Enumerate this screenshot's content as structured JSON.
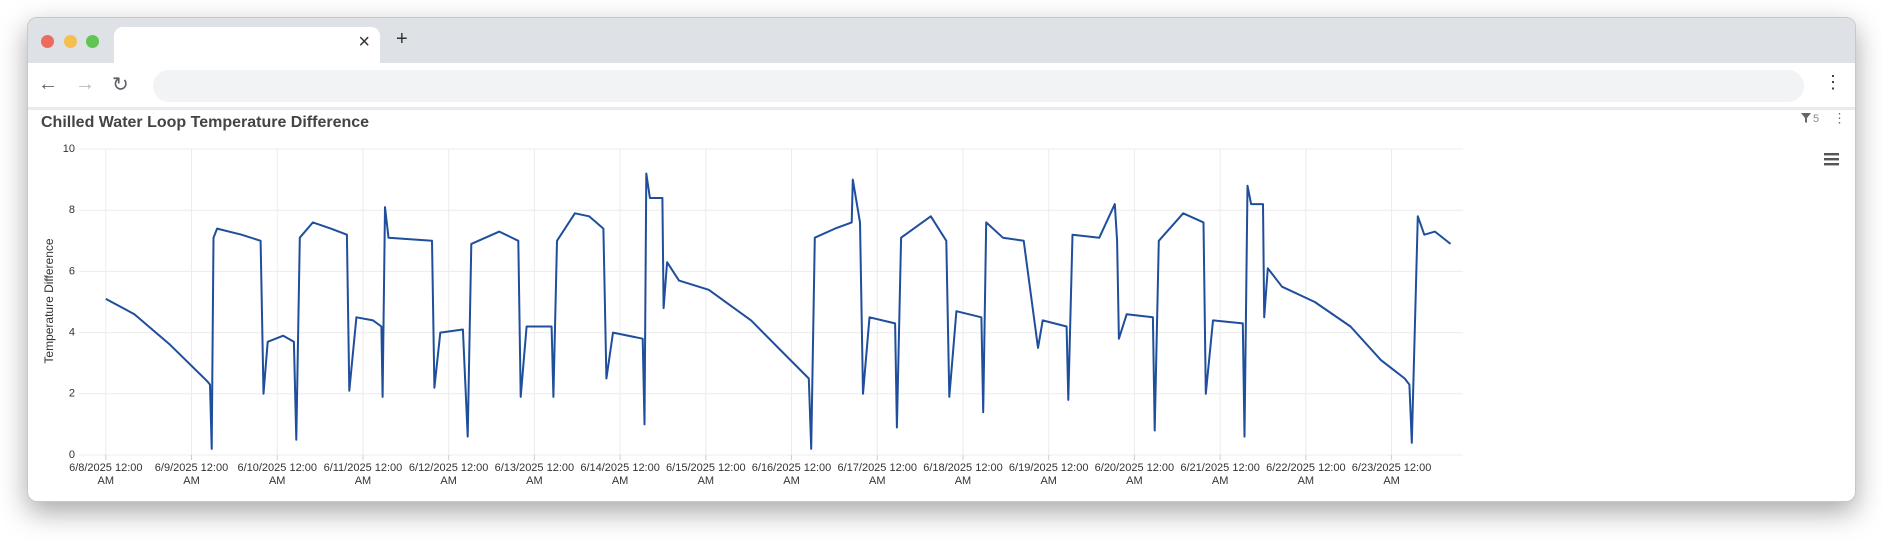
{
  "filter_count": 5,
  "chart_data": {
    "type": "line",
    "title": "Chilled Water Loop Temperature Difference",
    "y_label": "Temperature Difference",
    "x": [
      "2025-06-08T00:00",
      "2025-06-08T08:00",
      "2025-06-08T18:00",
      "2025-06-09T04:30",
      "2025-06-09T05:10",
      "2025-06-09T05:40",
      "2025-06-09T06:10",
      "2025-06-09T07:10",
      "2025-06-09T14:00",
      "2025-06-09T19:20",
      "2025-06-09T20:10",
      "2025-06-09T21:20",
      "2025-06-10T01:40",
      "2025-06-10T04:40",
      "2025-06-10T05:20",
      "2025-06-10T06:20",
      "2025-06-10T10:00",
      "2025-06-10T15:00",
      "2025-06-10T19:30",
      "2025-06-10T20:10",
      "2025-06-10T22:10",
      "2025-06-11T02:50",
      "2025-06-11T05:10",
      "2025-06-11T05:30",
      "2025-06-11T06:10",
      "2025-06-11T07:10",
      "2025-06-11T19:20",
      "2025-06-11T20:00",
      "2025-06-11T21:40",
      "2025-06-12T04:00",
      "2025-06-12T05:20",
      "2025-06-12T06:20",
      "2025-06-12T14:10",
      "2025-06-12T19:30",
      "2025-06-12T20:10",
      "2025-06-12T21:50",
      "2025-06-13T04:50",
      "2025-06-13T05:20",
      "2025-06-13T06:20",
      "2025-06-13T11:20",
      "2025-06-13T15:20",
      "2025-06-13T19:20",
      "2025-06-13T20:10",
      "2025-06-13T22:00",
      "2025-06-14T06:20",
      "2025-06-14T06:50",
      "2025-06-14T07:20",
      "2025-06-14T08:20",
      "2025-06-14T11:50",
      "2025-06-14T12:10",
      "2025-06-14T13:10",
      "2025-06-14T16:30",
      "2025-06-15T00:50",
      "2025-06-15T12:40",
      "2025-06-15T21:10",
      "2025-06-16T04:50",
      "2025-06-16T05:30",
      "2025-06-16T06:30",
      "2025-06-16T12:10",
      "2025-06-16T16:50",
      "2025-06-16T17:10",
      "2025-06-16T19:10",
      "2025-06-16T20:00",
      "2025-06-16T21:50",
      "2025-06-17T05:00",
      "2025-06-17T05:30",
      "2025-06-17T06:40",
      "2025-06-17T15:00",
      "2025-06-17T19:20",
      "2025-06-17T20:10",
      "2025-06-17T22:10",
      "2025-06-18T05:10",
      "2025-06-18T05:40",
      "2025-06-18T06:30",
      "2025-06-18T11:10",
      "2025-06-18T17:00",
      "2025-06-18T21:00",
      "2025-06-18T22:20",
      "2025-06-19T05:00",
      "2025-06-19T05:30",
      "2025-06-19T06:40",
      "2025-06-19T14:10",
      "2025-06-19T18:30",
      "2025-06-19T19:10",
      "2025-06-19T19:40",
      "2025-06-19T21:50",
      "2025-06-20T05:10",
      "2025-06-20T05:40",
      "2025-06-20T06:50",
      "2025-06-20T13:40",
      "2025-06-20T19:20",
      "2025-06-20T20:00",
      "2025-06-20T22:00",
      "2025-06-21T06:20",
      "2025-06-21T06:50",
      "2025-06-21T07:40",
      "2025-06-21T08:40",
      "2025-06-21T12:00",
      "2025-06-21T12:20",
      "2025-06-21T13:20",
      "2025-06-21T17:20",
      "2025-06-22T02:30",
      "2025-06-22T12:30",
      "2025-06-22T21:00",
      "2025-06-23T03:40",
      "2025-06-23T05:00",
      "2025-06-23T05:40",
      "2025-06-23T07:20",
      "2025-06-23T09:10",
      "2025-06-23T12:10",
      "2025-06-23T16:30"
    ],
    "series": [
      {
        "color": "#1f4e9c",
        "values": [
          5.1,
          4.6,
          3.6,
          2.4,
          2.3,
          0.2,
          7.1,
          7.4,
          7.2,
          7.0,
          2.0,
          3.7,
          3.9,
          3.7,
          0.5,
          7.1,
          7.6,
          7.4,
          7.2,
          2.1,
          4.5,
          4.4,
          4.2,
          1.9,
          8.1,
          7.1,
          7.0,
          2.2,
          4.0,
          4.1,
          0.6,
          6.9,
          7.3,
          7.0,
          1.9,
          4.2,
          4.2,
          1.9,
          7.0,
          7.9,
          7.8,
          7.4,
          2.5,
          4.0,
          3.8,
          1.0,
          9.2,
          8.4,
          8.4,
          4.8,
          6.3,
          5.7,
          5.4,
          4.4,
          3.4,
          2.5,
          0.2,
          7.1,
          7.4,
          7.6,
          9.0,
          7.6,
          2.0,
          4.5,
          4.3,
          0.9,
          7.1,
          7.8,
          7.0,
          1.9,
          4.7,
          4.5,
          1.4,
          7.6,
          7.1,
          7.0,
          3.5,
          4.4,
          4.2,
          1.8,
          7.2,
          7.1,
          8.2,
          7.0,
          3.8,
          4.6,
          4.5,
          0.8,
          7.0,
          7.9,
          7.6,
          2.0,
          4.4,
          4.3,
          0.6,
          8.8,
          8.2,
          8.2,
          4.5,
          6.1,
          5.5,
          5.0,
          4.2,
          3.1,
          2.5,
          2.3,
          0.4,
          7.8,
          7.2,
          7.3,
          6.9
        ]
      }
    ],
    "xlim": [
      "2025-06-07T16:30",
      "2025-06-23T20:00"
    ],
    "xticks": [
      {
        "value": "2025-06-08T00:00",
        "label": "6/8/2025 12:00 AM"
      },
      {
        "value": "2025-06-09T00:00",
        "label": "6/9/2025 12:00 AM"
      },
      {
        "value": "2025-06-10T00:00",
        "label": "6/10/2025 12:00 AM"
      },
      {
        "value": "2025-06-11T00:00",
        "label": "6/11/2025 12:00 AM"
      },
      {
        "value": "2025-06-12T00:00",
        "label": "6/12/2025 12:00 AM"
      },
      {
        "value": "2025-06-13T00:00",
        "label": "6/13/2025 12:00 AM"
      },
      {
        "value": "2025-06-14T00:00",
        "label": "6/14/2025 12:00 AM"
      },
      {
        "value": "2025-06-15T00:00",
        "label": "6/15/2025 12:00 AM"
      },
      {
        "value": "2025-06-16T00:00",
        "label": "6/16/2025 12:00 AM"
      },
      {
        "value": "2025-06-17T00:00",
        "label": "6/17/2025 12:00 AM"
      },
      {
        "value": "2025-06-18T00:00",
        "label": "6/18/2025 12:00 AM"
      },
      {
        "value": "2025-06-19T00:00",
        "label": "6/19/2025 12:00 AM"
      },
      {
        "value": "2025-06-20T00:00",
        "label": "6/20/2025 12:00 AM"
      },
      {
        "value": "2025-06-21T00:00",
        "label": "6/21/2025 12:00 AM"
      },
      {
        "value": "2025-06-22T00:00",
        "label": "6/22/2025 12:00 AM"
      },
      {
        "value": "2025-06-23T00:00",
        "label": "6/23/2025 12:00 AM"
      }
    ],
    "ylim": [
      0,
      10
    ],
    "yticks": [
      0,
      2,
      4,
      6,
      8,
      10
    ],
    "grid": true
  }
}
